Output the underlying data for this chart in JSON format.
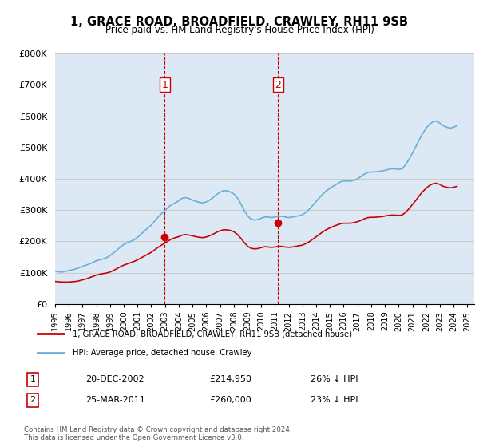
{
  "title": "1, GRACE ROAD, BROADFIELD, CRAWLEY, RH11 9SB",
  "subtitle": "Price paid vs. HM Land Registry's House Price Index (HPI)",
  "ylabel_ticks": [
    "£0",
    "£100K",
    "£200K",
    "£300K",
    "£400K",
    "£500K",
    "£600K",
    "£700K",
    "£800K"
  ],
  "ylim": [
    0,
    800000
  ],
  "xlim_start": 1995.0,
  "xlim_end": 2025.5,
  "sale1_date": 2002.97,
  "sale1_price": 214950,
  "sale1_label": "1",
  "sale2_date": 2011.23,
  "sale2_price": 260000,
  "sale2_label": "2",
  "hpi_line_color": "#6baed6",
  "price_line_color": "#cc0000",
  "sale_dot_color": "#cc0000",
  "vline_color": "#cc0000",
  "grid_color": "#cccccc",
  "bg_color": "#dce9f5",
  "legend_address": "1, GRACE ROAD, BROADFIELD, CRAWLEY, RH11 9SB (detached house)",
  "legend_hpi": "HPI: Average price, detached house, Crawley",
  "table_row1": [
    "1",
    "20-DEC-2002",
    "£214,950",
    "26% ↓ HPI"
  ],
  "table_row2": [
    "2",
    "25-MAR-2011",
    "£260,000",
    "23% ↓ HPI"
  ],
  "footer": "Contains HM Land Registry data © Crown copyright and database right 2024.\nThis data is licensed under the Open Government Licence v3.0.",
  "hpi_data_years": [
    1995.0,
    1995.25,
    1995.5,
    1995.75,
    1996.0,
    1996.25,
    1996.5,
    1996.75,
    1997.0,
    1997.25,
    1997.5,
    1997.75,
    1998.0,
    1998.25,
    1998.5,
    1998.75,
    1999.0,
    1999.25,
    1999.5,
    1999.75,
    2000.0,
    2000.25,
    2000.5,
    2000.75,
    2001.0,
    2001.25,
    2001.5,
    2001.75,
    2002.0,
    2002.25,
    2002.5,
    2002.75,
    2003.0,
    2003.25,
    2003.5,
    2003.75,
    2004.0,
    2004.25,
    2004.5,
    2004.75,
    2005.0,
    2005.25,
    2005.5,
    2005.75,
    2006.0,
    2006.25,
    2006.5,
    2006.75,
    2007.0,
    2007.25,
    2007.5,
    2007.75,
    2008.0,
    2008.25,
    2008.5,
    2008.75,
    2009.0,
    2009.25,
    2009.5,
    2009.75,
    2010.0,
    2010.25,
    2010.5,
    2010.75,
    2011.0,
    2011.25,
    2011.5,
    2011.75,
    2012.0,
    2012.25,
    2012.5,
    2012.75,
    2013.0,
    2013.25,
    2013.5,
    2013.75,
    2014.0,
    2014.25,
    2014.5,
    2014.75,
    2015.0,
    2015.25,
    2015.5,
    2015.75,
    2016.0,
    2016.25,
    2016.5,
    2016.75,
    2017.0,
    2017.25,
    2017.5,
    2017.75,
    2018.0,
    2018.25,
    2018.5,
    2018.75,
    2019.0,
    2019.25,
    2019.5,
    2019.75,
    2020.0,
    2020.25,
    2020.5,
    2020.75,
    2021.0,
    2021.25,
    2021.5,
    2021.75,
    2022.0,
    2022.25,
    2022.5,
    2022.75,
    2023.0,
    2023.25,
    2023.5,
    2023.75,
    2024.0,
    2024.25
  ],
  "hpi_values": [
    105000,
    103000,
    102000,
    104000,
    107000,
    109000,
    112000,
    116000,
    120000,
    124000,
    128000,
    133000,
    138000,
    141000,
    144000,
    148000,
    155000,
    163000,
    172000,
    182000,
    190000,
    196000,
    200000,
    205000,
    213000,
    223000,
    233000,
    243000,
    252000,
    265000,
    278000,
    289000,
    299000,
    310000,
    318000,
    323000,
    330000,
    338000,
    340000,
    337000,
    332000,
    328000,
    325000,
    323000,
    326000,
    332000,
    340000,
    350000,
    357000,
    362000,
    362000,
    358000,
    352000,
    340000,
    322000,
    300000,
    282000,
    272000,
    268000,
    270000,
    274000,
    278000,
    278000,
    276000,
    278000,
    280000,
    280000,
    278000,
    276000,
    278000,
    280000,
    282000,
    285000,
    293000,
    303000,
    315000,
    328000,
    340000,
    352000,
    362000,
    370000,
    377000,
    383000,
    390000,
    393000,
    393000,
    393000,
    395000,
    400000,
    407000,
    415000,
    420000,
    422000,
    422000,
    423000,
    425000,
    427000,
    430000,
    432000,
    432000,
    430000,
    432000,
    445000,
    462000,
    482000,
    503000,
    525000,
    545000,
    562000,
    575000,
    582000,
    585000,
    578000,
    570000,
    565000,
    562000,
    565000,
    570000
  ],
  "price_data_years": [
    1995.0,
    1995.25,
    1995.5,
    1995.75,
    1996.0,
    1996.25,
    1996.5,
    1996.75,
    1997.0,
    1997.25,
    1997.5,
    1997.75,
    1998.0,
    1998.25,
    1998.5,
    1998.75,
    1999.0,
    1999.25,
    1999.5,
    1999.75,
    2000.0,
    2000.25,
    2000.5,
    2000.75,
    2001.0,
    2001.25,
    2001.5,
    2001.75,
    2002.0,
    2002.25,
    2002.5,
    2002.75,
    2003.0,
    2003.25,
    2003.5,
    2003.75,
    2004.0,
    2004.25,
    2004.5,
    2004.75,
    2005.0,
    2005.25,
    2005.5,
    2005.75,
    2006.0,
    2006.25,
    2006.5,
    2006.75,
    2007.0,
    2007.25,
    2007.5,
    2007.75,
    2008.0,
    2008.25,
    2008.5,
    2008.75,
    2009.0,
    2009.25,
    2009.5,
    2009.75,
    2010.0,
    2010.25,
    2010.5,
    2010.75,
    2011.0,
    2011.25,
    2011.5,
    2011.75,
    2012.0,
    2012.25,
    2012.5,
    2012.75,
    2013.0,
    2013.25,
    2013.5,
    2013.75,
    2014.0,
    2014.25,
    2014.5,
    2014.75,
    2015.0,
    2015.25,
    2015.5,
    2015.75,
    2016.0,
    2016.25,
    2016.5,
    2016.75,
    2017.0,
    2017.25,
    2017.5,
    2017.75,
    2018.0,
    2018.25,
    2018.5,
    2018.75,
    2019.0,
    2019.25,
    2019.5,
    2019.75,
    2020.0,
    2020.25,
    2020.5,
    2020.75,
    2021.0,
    2021.25,
    2021.5,
    2021.75,
    2022.0,
    2022.25,
    2022.5,
    2022.75,
    2023.0,
    2023.25,
    2023.5,
    2023.75,
    2024.0,
    2024.25
  ],
  "price_values": [
    72000,
    71000,
    70000,
    70000,
    70000,
    71000,
    72000,
    74000,
    77000,
    80000,
    84000,
    88000,
    92000,
    95000,
    97000,
    99000,
    102000,
    107000,
    113000,
    119000,
    124000,
    128000,
    132000,
    136000,
    141000,
    147000,
    153000,
    159000,
    165000,
    173000,
    181000,
    188000,
    195000,
    202000,
    208000,
    212000,
    215000,
    220000,
    222000,
    220000,
    218000,
    215000,
    213000,
    212000,
    214000,
    218000,
    223000,
    229000,
    234000,
    237000,
    237000,
    235000,
    231000,
    223000,
    211000,
    197000,
    185000,
    178000,
    176000,
    177000,
    180000,
    183000,
    182000,
    181000,
    182000,
    184000,
    184000,
    182000,
    181000,
    182000,
    184000,
    186000,
    188000,
    193000,
    199000,
    207000,
    215000,
    223000,
    231000,
    238000,
    243000,
    248000,
    252000,
    256000,
    258000,
    258000,
    258000,
    260000,
    263000,
    267000,
    272000,
    276000,
    277000,
    277000,
    278000,
    279000,
    281000,
    283000,
    284000,
    284000,
    283000,
    284000,
    293000,
    304000,
    318000,
    331000,
    346000,
    359000,
    370000,
    379000,
    384000,
    386000,
    382000,
    376000,
    373000,
    371000,
    373000,
    376000
  ]
}
